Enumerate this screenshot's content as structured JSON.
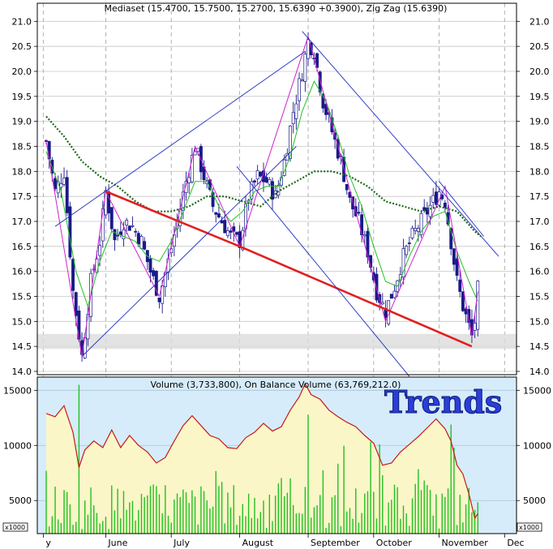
{
  "chart_data": [
    {
      "type": "candlestick",
      "title": "Mediaset (15.4700, 15.7500, 15.2700, 15.6390 +0.3900), Zig Zag (15.6390)",
      "ylim": [
        14.0,
        21.2
      ],
      "y_ticks": [
        "21.0",
        "20.5",
        "20.0",
        "19.5",
        "19.0",
        "18.5",
        "18.0",
        "17.5",
        "17.0",
        "16.5",
        "16.0",
        "15.5",
        "15.0",
        "14.5",
        "14.0"
      ],
      "x_labels": [
        "y",
        "June",
        "July",
        "August",
        "September",
        "October",
        "November",
        "Dec"
      ],
      "x_label_day": [
        -1,
        20,
        42,
        65,
        88,
        110,
        132,
        154
      ],
      "grid": true,
      "close_path": [
        [
          0,
          18.6
        ],
        [
          3,
          17.6
        ],
        [
          6,
          18.0
        ],
        [
          9,
          15.6
        ],
        [
          12,
          14.3
        ],
        [
          15,
          15.8
        ],
        [
          18,
          16.6
        ],
        [
          20,
          17.6
        ],
        [
          23,
          16.6
        ],
        [
          26,
          17.0
        ],
        [
          29,
          16.9
        ],
        [
          32,
          16.6
        ],
        [
          35,
          16.0
        ],
        [
          38,
          15.5
        ],
        [
          41,
          16.2
        ],
        [
          44,
          17.0
        ],
        [
          47,
          17.8
        ],
        [
          50,
          18.5
        ],
        [
          53,
          17.9
        ],
        [
          56,
          17.3
        ],
        [
          59,
          17.0
        ],
        [
          62,
          16.7
        ],
        [
          65,
          16.6
        ],
        [
          68,
          17.5
        ],
        [
          71,
          17.9
        ],
        [
          74,
          17.8
        ],
        [
          77,
          17.5
        ],
        [
          80,
          18.2
        ],
        [
          83,
          19.2
        ],
        [
          86,
          20.0
        ],
        [
          88,
          20.6
        ],
        [
          90,
          20.4
        ],
        [
          93,
          19.4
        ],
        [
          96,
          18.8
        ],
        [
          99,
          18.2
        ],
        [
          102,
          17.4
        ],
        [
          105,
          17.0
        ],
        [
          108,
          16.4
        ],
        [
          111,
          15.6
        ],
        [
          114,
          15.2
        ],
        [
          117,
          15.7
        ],
        [
          120,
          16.3
        ],
        [
          123,
          16.7
        ],
        [
          126,
          17.0
        ],
        [
          129,
          17.3
        ],
        [
          132,
          17.6
        ],
        [
          134,
          17.4
        ],
        [
          136,
          16.6
        ],
        [
          138,
          15.8
        ],
        [
          140,
          15.3
        ],
        [
          142,
          14.9
        ],
        [
          143,
          14.7
        ],
        [
          144,
          15.0
        ],
        [
          145,
          15.64
        ]
      ],
      "zigzag": [
        [
          0,
          18.6
        ],
        [
          12,
          14.3
        ],
        [
          20,
          17.6
        ],
        [
          38,
          15.5
        ],
        [
          50,
          18.5
        ],
        [
          65,
          16.5
        ],
        [
          88,
          20.7
        ],
        [
          114,
          15.0
        ],
        [
          134,
          17.7
        ],
        [
          143,
          14.7
        ],
        [
          145,
          15.6
        ]
      ],
      "ma_short": [
        [
          0,
          18.4
        ],
        [
          5,
          17.6
        ],
        [
          10,
          16.0
        ],
        [
          14,
          15.3
        ],
        [
          18,
          16.2
        ],
        [
          22,
          16.8
        ],
        [
          26,
          16.7
        ],
        [
          30,
          16.6
        ],
        [
          34,
          16.3
        ],
        [
          38,
          16.2
        ],
        [
          42,
          16.6
        ],
        [
          46,
          17.2
        ],
        [
          50,
          17.8
        ],
        [
          54,
          17.8
        ],
        [
          58,
          17.3
        ],
        [
          62,
          17.0
        ],
        [
          66,
          17.2
        ],
        [
          70,
          17.6
        ],
        [
          74,
          17.7
        ],
        [
          78,
          17.7
        ],
        [
          82,
          18.3
        ],
        [
          86,
          19.2
        ],
        [
          90,
          19.8
        ],
        [
          94,
          19.4
        ],
        [
          98,
          18.7
        ],
        [
          102,
          17.9
        ],
        [
          106,
          17.3
        ],
        [
          110,
          16.5
        ],
        [
          114,
          15.8
        ],
        [
          118,
          15.7
        ],
        [
          122,
          16.3
        ],
        [
          126,
          16.8
        ],
        [
          130,
          17.1
        ],
        [
          134,
          17.2
        ],
        [
          138,
          16.4
        ],
        [
          142,
          15.8
        ],
        [
          145,
          15.4
        ]
      ],
      "ma_long": [
        [
          0,
          19.1
        ],
        [
          6,
          18.7
        ],
        [
          12,
          18.2
        ],
        [
          18,
          17.9
        ],
        [
          24,
          17.7
        ],
        [
          30,
          17.4
        ],
        [
          36,
          17.2
        ],
        [
          42,
          17.2
        ],
        [
          48,
          17.3
        ],
        [
          54,
          17.5
        ],
        [
          60,
          17.5
        ],
        [
          66,
          17.4
        ],
        [
          72,
          17.3
        ],
        [
          78,
          17.6
        ],
        [
          84,
          17.8
        ],
        [
          90,
          18.0
        ],
        [
          96,
          18.0
        ],
        [
          102,
          17.9
        ],
        [
          108,
          17.7
        ],
        [
          114,
          17.4
        ],
        [
          120,
          17.3
        ],
        [
          126,
          17.2
        ],
        [
          132,
          17.3
        ],
        [
          138,
          17.2
        ],
        [
          144,
          16.8
        ],
        [
          146,
          16.7
        ]
      ],
      "trend_lines": [
        {
          "color": "#e02020",
          "points": [
            [
              20,
              17.6
            ],
            [
              65,
              16.5
            ],
            [
              143,
              14.5
            ]
          ]
        },
        {
          "color": "#2030c0",
          "points": [
            [
              12,
              14.3
            ],
            [
              84,
              18.5
            ]
          ]
        },
        {
          "color": "#2030c0",
          "points": [
            [
              3,
              16.9
            ],
            [
              87,
              20.4
            ]
          ]
        },
        {
          "color": "#2030c0",
          "points": [
            [
              86,
              20.8
            ],
            [
              152,
              16.3
            ]
          ]
        },
        {
          "color": "#2030c0",
          "points": [
            [
              64,
              18.1
            ],
            [
              122,
              13.9
            ]
          ]
        },
        {
          "color": "#2030c0",
          "points": [
            [
              132,
              17.8
            ],
            [
              147,
              16.7
            ]
          ]
        }
      ],
      "support_band": [
        14.45,
        14.75
      ]
    },
    {
      "type": "bar",
      "title": "Volume (3,733,800), On Balance Volume (63,769,212.0)",
      "unit_label": "x1000",
      "ylim": [
        2000,
        16200
      ],
      "y_ticks": [
        "15000",
        "10000",
        "5000"
      ],
      "watermark": "Trends",
      "volume_seed": 7,
      "volume_max": 15500,
      "obv": [
        [
          0,
          12900
        ],
        [
          3,
          12600
        ],
        [
          6,
          13600
        ],
        [
          9,
          11200
        ],
        [
          11,
          8000
        ],
        [
          13,
          9600
        ],
        [
          16,
          10400
        ],
        [
          19,
          9800
        ],
        [
          22,
          11400
        ],
        [
          25,
          9800
        ],
        [
          28,
          10900
        ],
        [
          31,
          10000
        ],
        [
          34,
          9400
        ],
        [
          37,
          8400
        ],
        [
          40,
          8900
        ],
        [
          43,
          10400
        ],
        [
          46,
          11800
        ],
        [
          49,
          12700
        ],
        [
          52,
          11800
        ],
        [
          55,
          10900
        ],
        [
          58,
          10600
        ],
        [
          61,
          9800
        ],
        [
          64,
          9700
        ],
        [
          67,
          10700
        ],
        [
          70,
          11200
        ],
        [
          73,
          12000
        ],
        [
          76,
          11300
        ],
        [
          79,
          11700
        ],
        [
          82,
          13200
        ],
        [
          85,
          14400
        ],
        [
          87,
          15600
        ],
        [
          89,
          14600
        ],
        [
          92,
          14200
        ],
        [
          95,
          13200
        ],
        [
          98,
          12600
        ],
        [
          101,
          12100
        ],
        [
          104,
          11700
        ],
        [
          107,
          10900
        ],
        [
          110,
          10200
        ],
        [
          113,
          8200
        ],
        [
          116,
          8400
        ],
        [
          119,
          9400
        ],
        [
          122,
          10100
        ],
        [
          125,
          10800
        ],
        [
          128,
          11600
        ],
        [
          131,
          12400
        ],
        [
          134,
          11500
        ],
        [
          136,
          10400
        ],
        [
          138,
          8200
        ],
        [
          140,
          7400
        ],
        [
          142,
          5600
        ],
        [
          144,
          3400
        ],
        [
          145,
          3800
        ]
      ]
    }
  ]
}
